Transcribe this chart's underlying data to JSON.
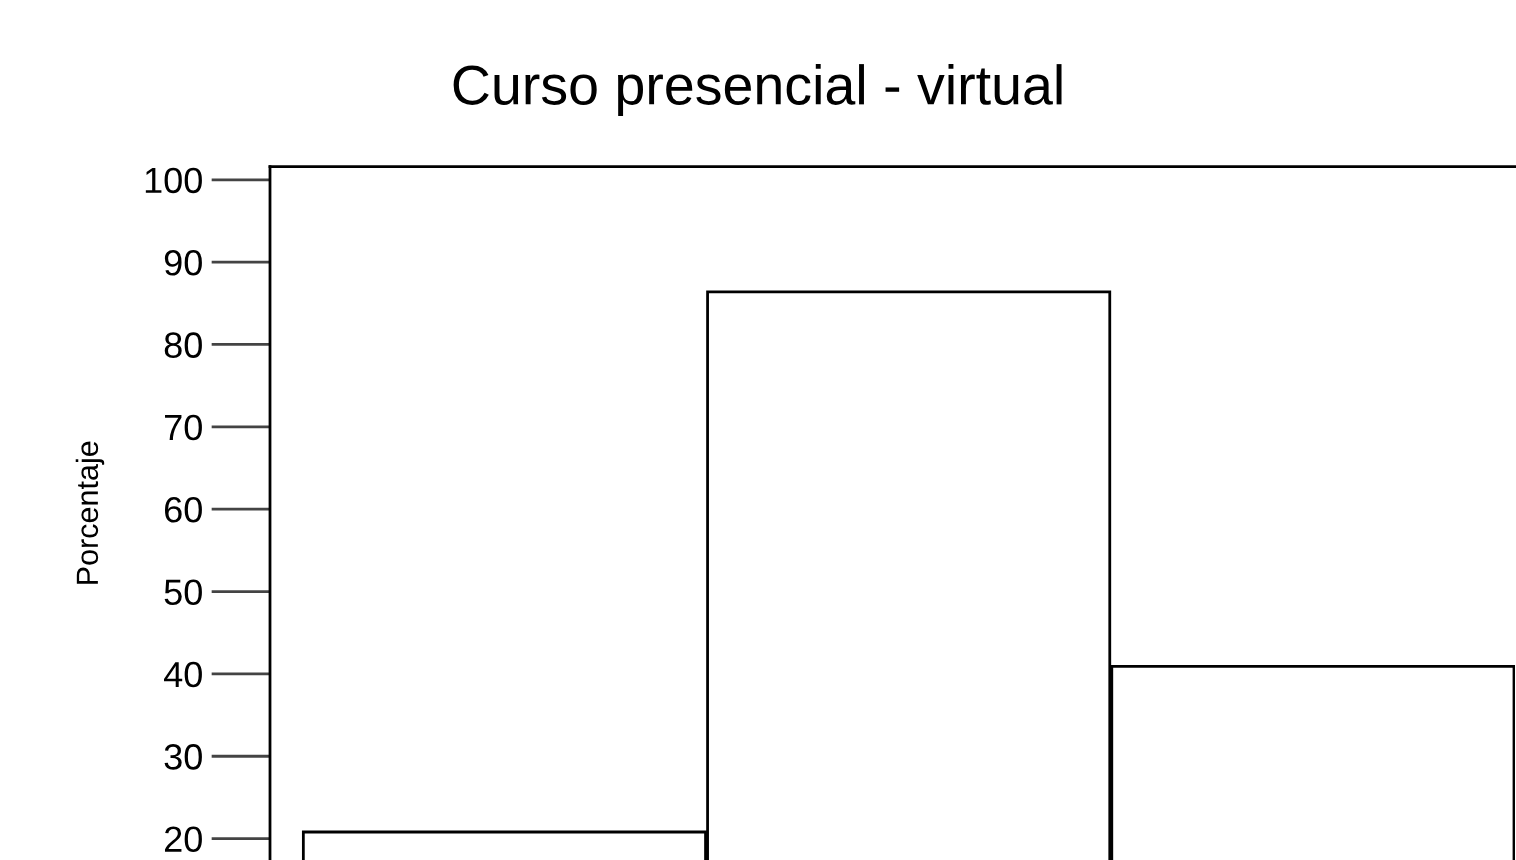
{
  "chart_data": {
    "type": "bar",
    "title": "Curso presencial - virtual",
    "ylabel": "Porcentaje",
    "categories": [
      null,
      null,
      null
    ],
    "series": [
      {
        "color": "#ffffff",
        "values": [
          20.8,
          86.4,
          40.9
        ]
      }
    ],
    "ylim": [
      17.4,
      101.6
    ],
    "yticks": [
      20,
      30,
      40,
      50,
      60,
      70,
      80,
      90,
      100
    ],
    "tick_labels": "y",
    "grid": false,
    "legend": false
  }
}
